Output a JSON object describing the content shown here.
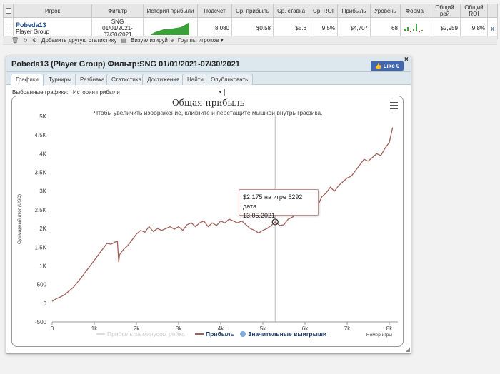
{
  "table": {
    "headers": [
      "Игрок",
      "Фильтр",
      "История прибыли",
      "Подсчет",
      "Ср. прибыль",
      "Ср. ставка",
      "Ср. ROI",
      "Прибыль",
      "Уровень",
      "Форма",
      "Общий рей",
      "Общий ROI"
    ],
    "row": {
      "player_name": "Pobeda13",
      "player_group": "Player Group",
      "filter_line1": "SNG",
      "filter_line2": "01/01/2021-",
      "filter_line3": "07/30/2021",
      "count": "8,080",
      "avg_profit": "$0.58",
      "avg_stake": "$5.6",
      "avg_roi": "9.5%",
      "profit": "$4,707",
      "level": "68",
      "total_rake": "$2,959",
      "total_roi": "9.8%",
      "remove": "x"
    }
  },
  "toolbar": {
    "add_stats": "Добавить другую статистику",
    "visualize": "Визуализируйте",
    "player_groups": "Группы игроков"
  },
  "dialog": {
    "title": "Pobeda13 (Player Group) Фильтр:SNG 01/01/2021-07/30/2021",
    "like_label": "Like 0",
    "close": "×",
    "tabs": [
      "Графики",
      "Турниры",
      "Разбивка",
      "Статистика",
      "Достижения",
      "Найти",
      "Опубликовать"
    ],
    "selector_label": "Выбранные графики:",
    "selector_value": "История прибыли"
  },
  "chart_data": {
    "type": "line",
    "title": "Общая прибыль",
    "subtitle": "Чтобы увеличить изображение, кликните и перетащите мышкой внутрь графика.",
    "xlabel": "Номер игры",
    "ylabel": "Суммарный итог (USD)",
    "xlim": [
      0,
      8080
    ],
    "ylim": [
      -500,
      5000
    ],
    "x_ticks": [
      "0",
      "1k",
      "2k",
      "3k",
      "4k",
      "5k",
      "6k",
      "7k",
      "8k"
    ],
    "y_ticks": [
      "-500",
      "0",
      "500",
      "1K",
      "1.5K",
      "2K",
      "2.5K",
      "3K",
      "3.5K",
      "4K",
      "4.5K",
      "5K"
    ],
    "series": [
      {
        "name": "Прибыль",
        "color": "#a0605a",
        "x": [
          0,
          100,
          200,
          300,
          400,
          500,
          600,
          700,
          800,
          900,
          1000,
          1100,
          1200,
          1300,
          1400,
          1500,
          1550,
          1580,
          1600,
          1700,
          1800,
          1900,
          2000,
          2100,
          2200,
          2300,
          2400,
          2500,
          2600,
          2700,
          2800,
          2900,
          3000,
          3100,
          3200,
          3300,
          3400,
          3500,
          3600,
          3700,
          3800,
          3900,
          4000,
          4100,
          4200,
          4300,
          4400,
          4500,
          4600,
          4700,
          4800,
          4900,
          5000,
          5100,
          5200,
          5292,
          5400,
          5500,
          5600,
          5700,
          5800,
          5900,
          6000,
          6100,
          6200,
          6300,
          6400,
          6500,
          6600,
          6700,
          6800,
          6900,
          7000,
          7100,
          7200,
          7300,
          7400,
          7500,
          7600,
          7700,
          7800,
          7900,
          8000,
          8080
        ],
        "values": [
          50,
          120,
          170,
          230,
          330,
          420,
          560,
          700,
          850,
          1000,
          1150,
          1300,
          1450,
          1600,
          1580,
          1640,
          1650,
          1100,
          1300,
          1450,
          1550,
          1700,
          1850,
          1950,
          1900,
          2050,
          1920,
          2000,
          1950,
          2000,
          2050,
          1980,
          2050,
          1950,
          2100,
          2150,
          2050,
          2150,
          2200,
          2050,
          2150,
          2080,
          2200,
          2150,
          2250,
          2200,
          2150,
          2200,
          2100,
          2000,
          1950,
          1880,
          1950,
          2000,
          2080,
          2175,
          2080,
          2100,
          2250,
          2300,
          2400,
          2450,
          2550,
          2500,
          2700,
          2600,
          2850,
          2950,
          3100,
          3000,
          3150,
          3250,
          3350,
          3400,
          3550,
          3700,
          3850,
          3800,
          3900,
          4000,
          3950,
          4150,
          4300,
          4700
        ]
      },
      {
        "name": "Прибыль за минусом рейка",
        "color": "#cccccc",
        "x": [],
        "values": []
      },
      {
        "name": "Значительные выигрыши",
        "color": "#7caadc",
        "x": [],
        "values": []
      }
    ],
    "tooltip_line1": "$2,175 на игре 5292 дата",
    "tooltip_line2": "13.05.2021",
    "crosshair_x": 5292,
    "grid": false,
    "legend_position": "bottom"
  }
}
